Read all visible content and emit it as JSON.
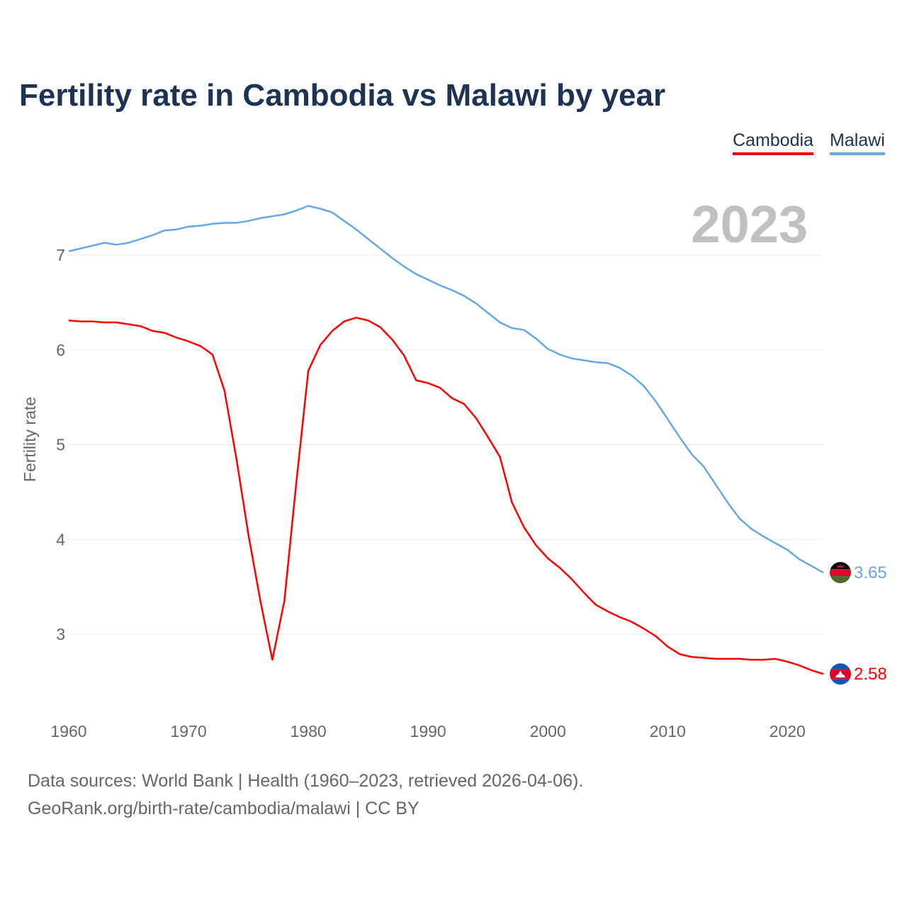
{
  "chart_data": {
    "type": "line",
    "title": "Fertility rate in Cambodia vs Malawi by year",
    "xlabel": "",
    "ylabel": "Fertility rate",
    "xlim": [
      1960,
      2023
    ],
    "ylim": [
      2.5,
      7.6
    ],
    "x_ticks": [
      "1960",
      "1970",
      "1980",
      "1990",
      "2000",
      "2010",
      "2020"
    ],
    "y_ticks": [
      "3",
      "4",
      "5",
      "6",
      "7"
    ],
    "grid": true,
    "legend_position": "top-right",
    "year_label": "2023",
    "x": [
      1960,
      1961,
      1962,
      1963,
      1964,
      1965,
      1966,
      1967,
      1968,
      1969,
      1970,
      1971,
      1972,
      1973,
      1974,
      1975,
      1976,
      1977,
      1978,
      1979,
      1980,
      1981,
      1982,
      1983,
      1984,
      1985,
      1986,
      1987,
      1988,
      1989,
      1990,
      1991,
      1992,
      1993,
      1994,
      1995,
      1996,
      1997,
      1998,
      1999,
      2000,
      2001,
      2002,
      2003,
      2004,
      2005,
      2006,
      2007,
      2008,
      2009,
      2010,
      2011,
      2012,
      2013,
      2014,
      2015,
      2016,
      2017,
      2018,
      2019,
      2020,
      2021,
      2022,
      2023
    ],
    "series": [
      {
        "name": "Cambodia",
        "color": "#ff0000",
        "end_label": "2.58",
        "flag": "cambodia-flag",
        "values": [
          6.31,
          6.3,
          6.3,
          6.29,
          6.29,
          6.27,
          6.25,
          6.2,
          6.18,
          6.13,
          6.09,
          6.04,
          5.95,
          5.57,
          4.85,
          4.05,
          3.35,
          2.73,
          3.35,
          4.6,
          5.78,
          6.05,
          6.2,
          6.3,
          6.34,
          6.31,
          6.24,
          6.11,
          5.94,
          5.68,
          5.65,
          5.6,
          5.49,
          5.43,
          5.28,
          5.08,
          4.87,
          4.39,
          4.13,
          3.94,
          3.8,
          3.7,
          3.58,
          3.44,
          3.31,
          3.24,
          3.18,
          3.13,
          3.06,
          2.98,
          2.87,
          2.79,
          2.76,
          2.75,
          2.74,
          2.74,
          2.74,
          2.73,
          2.73,
          2.74,
          2.71,
          2.67,
          2.62,
          2.58
        ]
      },
      {
        "name": "Malawi",
        "color": "#63a8eb",
        "end_label": "3.65",
        "flag": "malawi-flag",
        "values": [
          7.04,
          7.07,
          7.1,
          7.13,
          7.11,
          7.13,
          7.17,
          7.21,
          7.26,
          7.27,
          7.3,
          7.31,
          7.33,
          7.34,
          7.34,
          7.36,
          7.39,
          7.41,
          7.43,
          7.47,
          7.52,
          7.49,
          7.45,
          7.36,
          7.27,
          7.17,
          7.07,
          6.97,
          6.88,
          6.8,
          6.74,
          6.68,
          6.63,
          6.57,
          6.49,
          6.39,
          6.29,
          6.23,
          6.21,
          6.12,
          6.01,
          5.95,
          5.91,
          5.89,
          5.87,
          5.86,
          5.81,
          5.73,
          5.62,
          5.46,
          5.27,
          5.08,
          4.9,
          4.77,
          4.58,
          4.39,
          4.22,
          4.11,
          4.03,
          3.96,
          3.89,
          3.79,
          3.72,
          3.65
        ]
      }
    ]
  },
  "footer": {
    "source": "Data sources: World Bank | Health (1960–2023, retrieved 2026-04-06).",
    "credit": "GeoRank.org/birth-rate/cambodia/malawi | CC BY"
  }
}
